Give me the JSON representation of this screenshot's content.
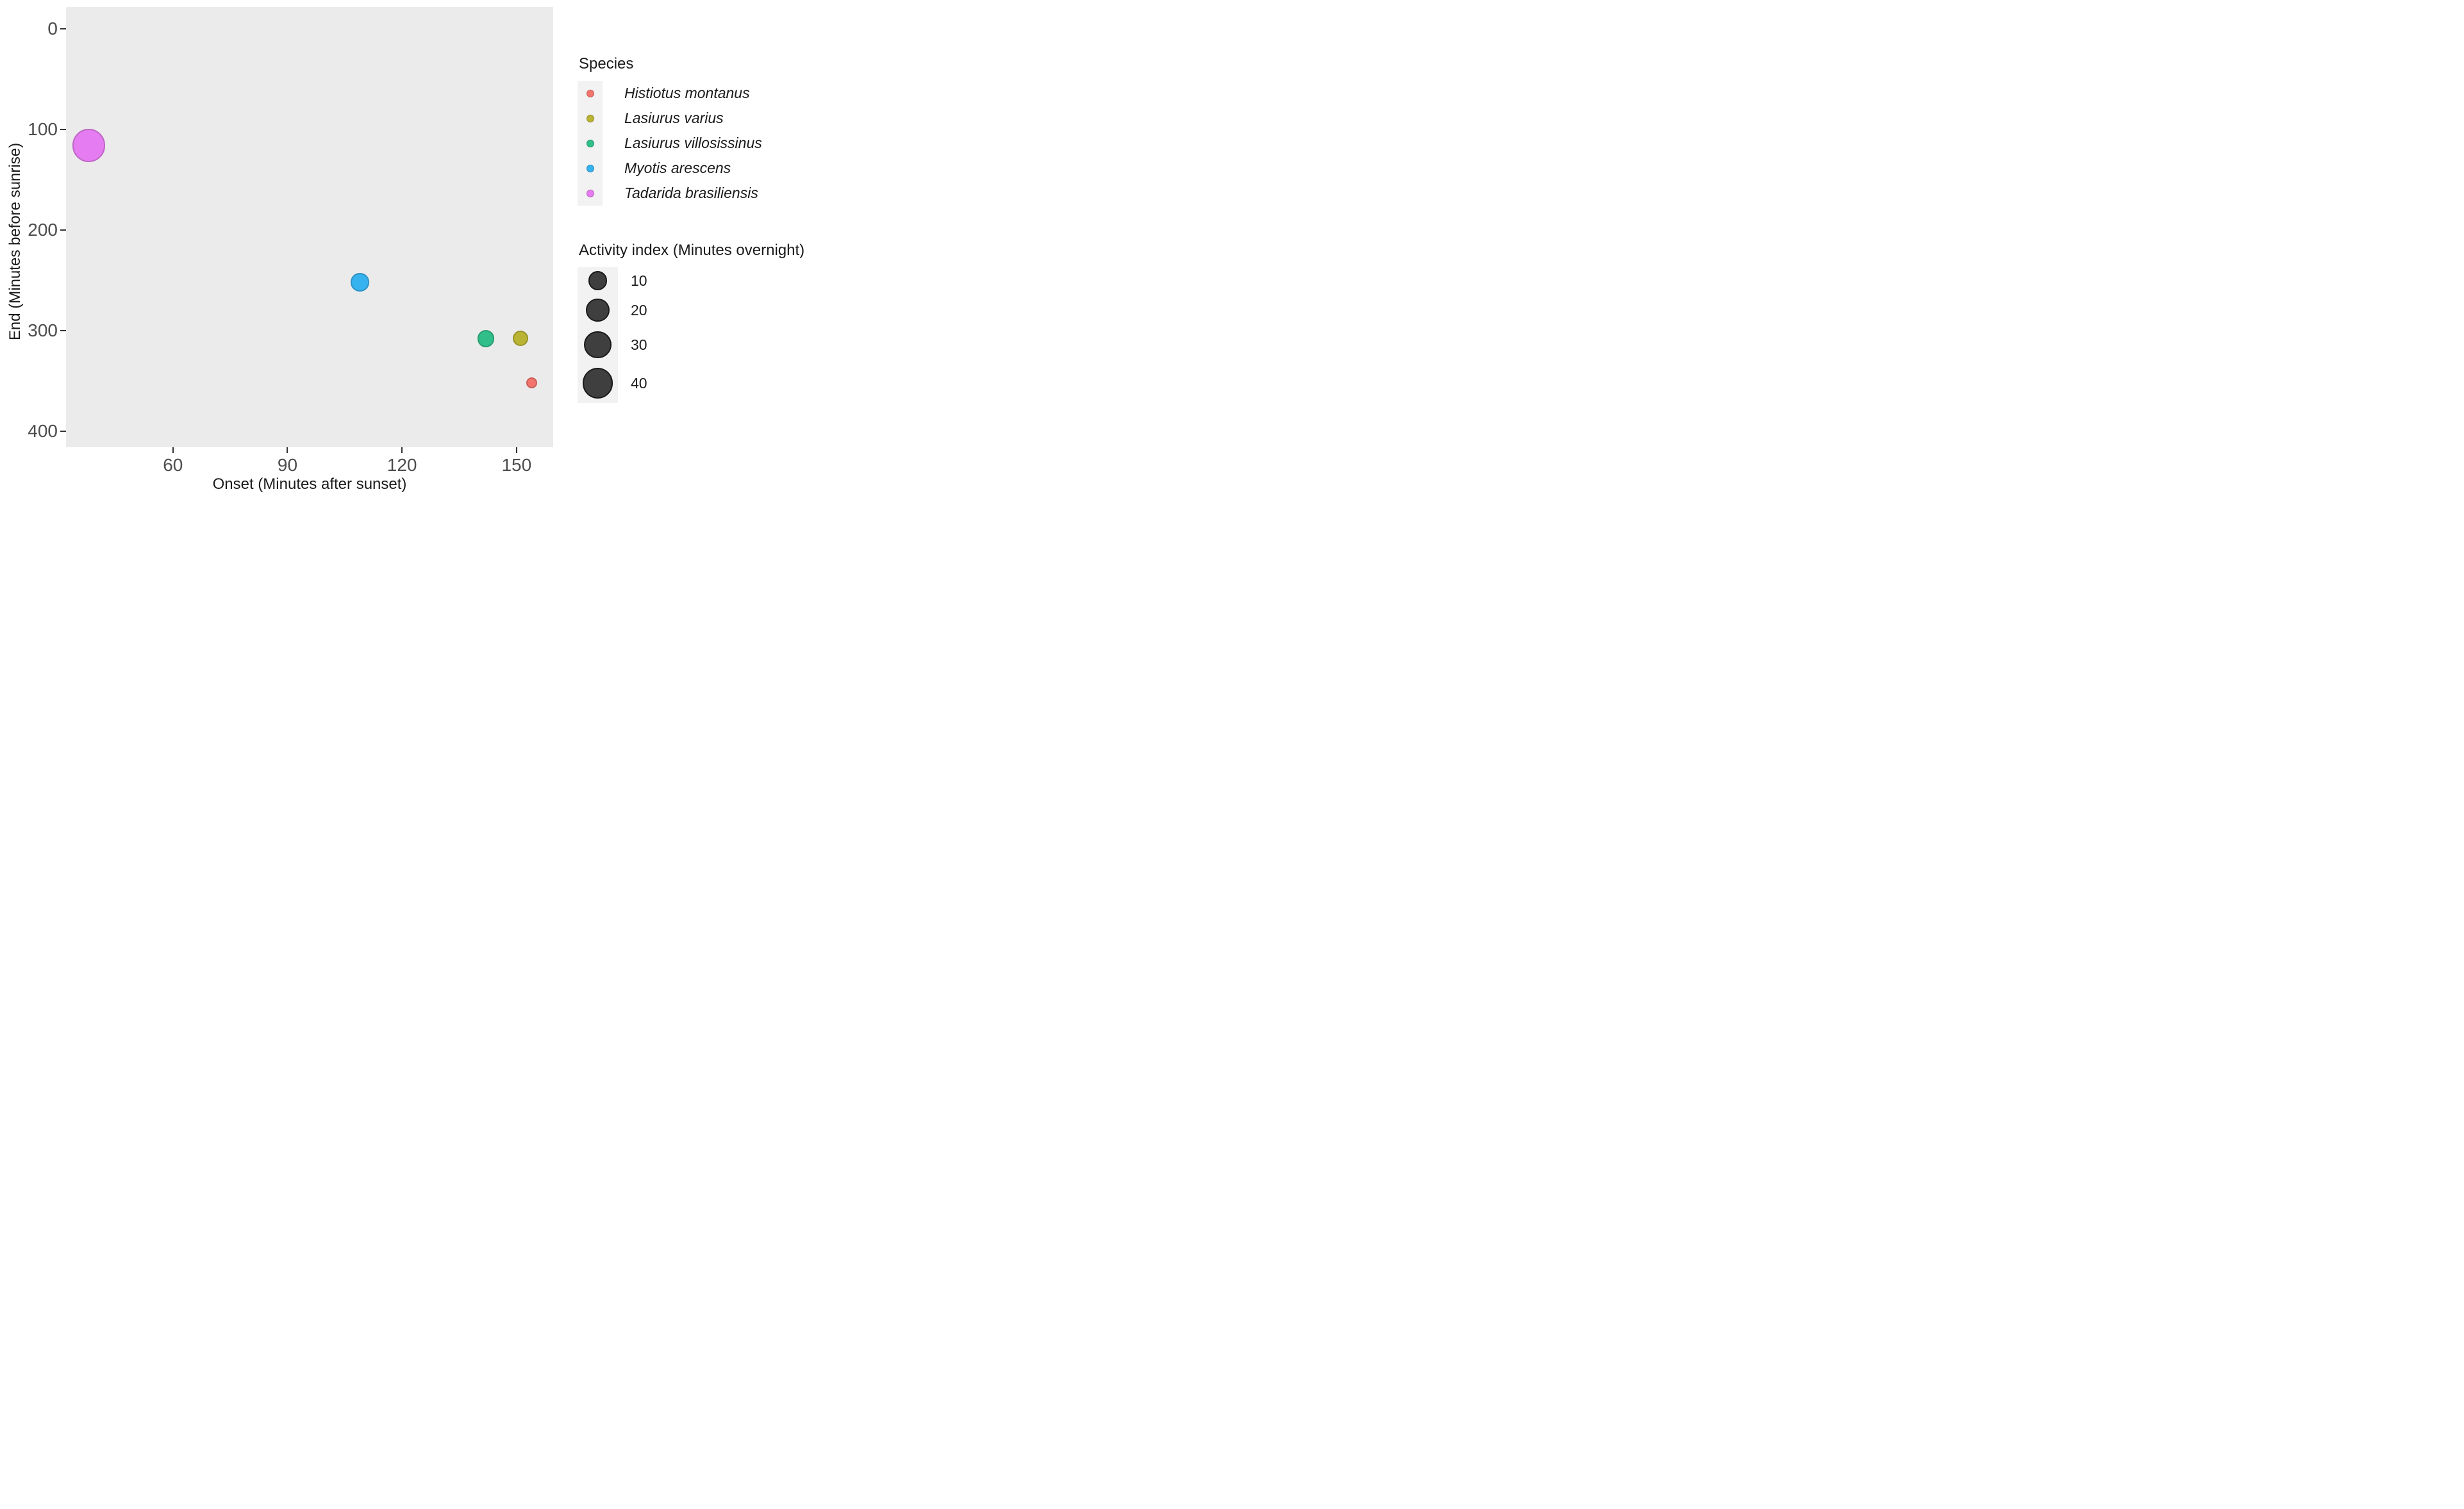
{
  "page": {
    "background": "#FFFFFF"
  },
  "chart_data": {
    "type": "scatter",
    "subtype": "bubble",
    "title": "",
    "xlabel": "Onset (Minutes after sunset)",
    "ylabel": "End (Minutes before sunrise)",
    "x_ticks": [
      60,
      90,
      120,
      150
    ],
    "y_ticks": [
      0,
      100,
      200,
      300,
      400
    ],
    "xlim": [
      32,
      159.6
    ],
    "ylim_top_to_bottom": [
      -21.4,
      415.9
    ],
    "y_axis_reversed": true,
    "grid": false,
    "panel_background": "#EBEBEB",
    "legend_key_background": "#F2F2F2",
    "tick_label_color": "#4D4D4D",
    "title_color": "#1A1A1A",
    "series": [
      {
        "name": "Histiotus montanus",
        "color": "#F3756D",
        "points": [
          {
            "onset": 154,
            "end": 352,
            "activity_index": 1
          }
        ]
      },
      {
        "name": "Lasiurus varius",
        "color": "#B9B433",
        "points": [
          {
            "onset": 151,
            "end": 308,
            "activity_index": 5
          }
        ]
      },
      {
        "name": "Lasiurus villosissinus",
        "color": "#30BF89",
        "points": [
          {
            "onset": 142,
            "end": 308,
            "activity_index": 7
          }
        ]
      },
      {
        "name": "Myotis arescens",
        "color": "#36B2EF",
        "points": [
          {
            "onset": 109,
            "end": 252,
            "activity_index": 9
          }
        ]
      },
      {
        "name": "Tadarida brasiliensis",
        "color": "#E67CF1",
        "points": [
          {
            "onset": 38,
            "end": 116,
            "activity_index": 50
          }
        ]
      }
    ],
    "legends": {
      "species": {
        "title": "Species"
      },
      "size": {
        "title": "Activity index (Minutes overnight)",
        "values": [
          10,
          20,
          30,
          40
        ],
        "circle_color": "#3F3F3F"
      }
    }
  }
}
